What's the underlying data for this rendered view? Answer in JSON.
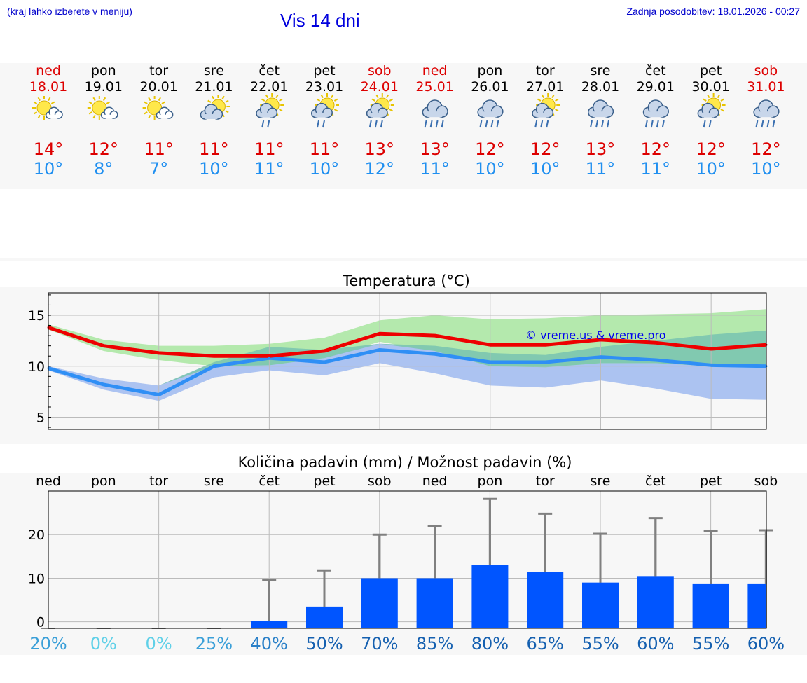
{
  "header": {
    "location_hint": "(kraj lahko izberete v meniju)",
    "title": "Vis 14 dni",
    "last_update": "Zadnja posodobitev: 18.01.2026 - 00:27"
  },
  "colors": {
    "weekend": "#dd0000",
    "weekday": "#000000",
    "temp_max": "#dd0000",
    "temp_min": "#1f8ff0",
    "max_line": "#ee0000",
    "min_line": "#2f8ff5",
    "max_band": "#a8e6a0",
    "min_band": "#a8c0f0",
    "overlap_band": "#7cc6b0",
    "bars": "#0055ff",
    "whisker": "#808080",
    "watermark": "#0000ee"
  },
  "days": [
    {
      "name": "ned",
      "date": "18.01",
      "weekend": true,
      "icon": "sun-cloud-icon",
      "tmax": "14°",
      "tmin": "10°",
      "pct": "20%"
    },
    {
      "name": "pon",
      "date": "19.01",
      "weekend": false,
      "icon": "sun-cloud-icon",
      "tmax": "12°",
      "tmin": "8°",
      "pct": "0%"
    },
    {
      "name": "tor",
      "date": "20.01",
      "weekend": false,
      "icon": "sun-cloud-icon",
      "tmax": "11°",
      "tmin": "7°",
      "pct": "0%"
    },
    {
      "name": "sre",
      "date": "21.01",
      "weekend": false,
      "icon": "cloud-sun-icon",
      "tmax": "11°",
      "tmin": "10°",
      "pct": "25%"
    },
    {
      "name": "čet",
      "date": "22.01",
      "weekend": false,
      "icon": "sun-cloud-rain-icon",
      "tmax": "11°",
      "tmin": "11°",
      "pct": "40%"
    },
    {
      "name": "pet",
      "date": "23.01",
      "weekend": false,
      "icon": "sun-cloud-rain-icon",
      "tmax": "11°",
      "tmin": "10°",
      "pct": "50%"
    },
    {
      "name": "sob",
      "date": "24.01",
      "weekend": true,
      "icon": "sun-cloud-heavy-rain-icon",
      "tmax": "13°",
      "tmin": "12°",
      "pct": "70%"
    },
    {
      "name": "ned",
      "date": "25.01",
      "weekend": true,
      "icon": "cloud-rain-icon",
      "tmax": "13°",
      "tmin": "11°",
      "pct": "85%"
    },
    {
      "name": "pon",
      "date": "26.01",
      "weekend": false,
      "icon": "cloud-rain-icon",
      "tmax": "12°",
      "tmin": "10°",
      "pct": "80%"
    },
    {
      "name": "tor",
      "date": "27.01",
      "weekend": false,
      "icon": "sun-cloud-heavy-rain-icon",
      "tmax": "12°",
      "tmin": "10°",
      "pct": "65%"
    },
    {
      "name": "sre",
      "date": "28.01",
      "weekend": false,
      "icon": "cloud-rain-icon",
      "tmax": "13°",
      "tmin": "11°",
      "pct": "55%"
    },
    {
      "name": "čet",
      "date": "29.01",
      "weekend": false,
      "icon": "cloud-rain-icon",
      "tmax": "12°",
      "tmin": "11°",
      "pct": "60%"
    },
    {
      "name": "pet",
      "date": "30.01",
      "weekend": false,
      "icon": "sun-cloud-rain-icon",
      "tmax": "12°",
      "tmin": "10°",
      "pct": "55%"
    },
    {
      "name": "sob",
      "date": "31.01",
      "weekend": true,
      "icon": "cloud-rain-icon",
      "tmax": "12°",
      "tmin": "10°",
      "pct": "60%"
    }
  ],
  "chart_data": [
    {
      "type": "line",
      "title": "Temperatura (°C)",
      "xlabel": "",
      "ylabel": "",
      "ylim": [
        3.8,
        17.2
      ],
      "yticks": [
        5,
        10,
        15
      ],
      "grid": true,
      "annotation": "© vreme.us & vreme.pro",
      "series": [
        {
          "name": "max",
          "values": [
            13.8,
            12.0,
            11.3,
            11.0,
            11.0,
            11.5,
            13.2,
            13.0,
            12.1,
            12.1,
            12.6,
            12.3,
            11.7,
            12.1
          ],
          "band_low": [
            13.6,
            11.5,
            10.6,
            10.0,
            10.1,
            10.8,
            12.4,
            11.5,
            10.0,
            9.9,
            10.3,
            10.3,
            10.0,
            10.0
          ],
          "band_high": [
            14.1,
            12.6,
            12.0,
            12.0,
            12.2,
            12.8,
            14.5,
            15.0,
            14.6,
            14.7,
            15.0,
            15.1,
            15.2,
            15.6
          ]
        },
        {
          "name": "min",
          "values": [
            9.8,
            8.2,
            7.2,
            10.0,
            10.8,
            10.4,
            11.6,
            11.2,
            10.4,
            10.4,
            10.9,
            10.6,
            10.1,
            10.0
          ],
          "band_low": [
            9.6,
            7.7,
            6.6,
            8.9,
            9.6,
            9.1,
            10.3,
            9.3,
            8.1,
            7.9,
            8.6,
            7.8,
            6.8,
            6.7
          ],
          "band_high": [
            10.0,
            8.8,
            8.1,
            10.4,
            11.9,
            11.6,
            12.2,
            12.0,
            11.3,
            11.1,
            11.9,
            12.5,
            13.1,
            13.5
          ]
        }
      ]
    },
    {
      "type": "bar",
      "title": "Količina padavin (mm) / Možnost padavin (%)",
      "categories": [
        "ned",
        "pon",
        "tor",
        "sre",
        "čet",
        "pet",
        "sob",
        "ned",
        "pon",
        "tor",
        "sre",
        "čet",
        "pet",
        "sob"
      ],
      "ylim": [
        -1.5,
        30
      ],
      "yticks": [
        0,
        10,
        20
      ],
      "grid": true,
      "values": [
        0,
        0,
        0,
        0,
        0.2,
        3.5,
        10,
        10,
        13,
        11.5,
        9,
        10.5,
        8.8,
        8.8
      ],
      "whisker_high": [
        0,
        0,
        0,
        0,
        9.6,
        11.8,
        20.0,
        22.0,
        28.2,
        24.8,
        20.2,
        23.8,
        20.8,
        21.0
      ],
      "chance_percent": [
        20,
        0,
        0,
        25,
        40,
        50,
        70,
        85,
        80,
        65,
        55,
        60,
        55,
        60
      ]
    }
  ]
}
